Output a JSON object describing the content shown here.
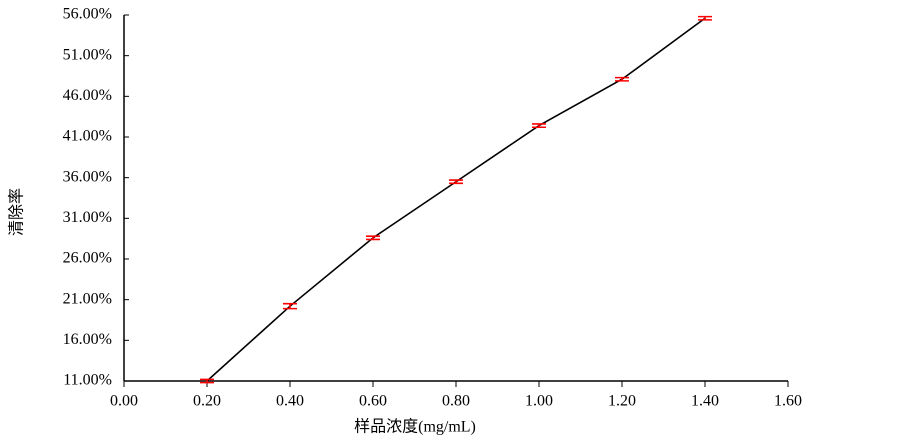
{
  "chart_data": {
    "type": "line",
    "xlabel": "样品浓度(mg/mL)",
    "ylabel": "清除率",
    "x": [
      0.2,
      0.4,
      0.6,
      0.8,
      1.0,
      1.2,
      1.4
    ],
    "series": [
      {
        "color": "#000000",
        "error_color": "#ff0000",
        "values": [
          11.0,
          20.2,
          28.6,
          35.5,
          42.4,
          48.1,
          55.6
        ],
        "errors": [
          0.2,
          0.3,
          0.2,
          0.2,
          0.2,
          0.2,
          0.2
        ]
      }
    ],
    "xlim": [
      0,
      1.6
    ],
    "xticks": [
      {
        "value": 0,
        "label": "0.00"
      },
      {
        "value": 0.2,
        "label": "0.20"
      },
      {
        "value": 0.4,
        "label": "0.40"
      },
      {
        "value": 0.6,
        "label": "0.60"
      },
      {
        "value": 0.8,
        "label": "0.80"
      },
      {
        "value": 1.0,
        "label": "1.00"
      },
      {
        "value": 1.2,
        "label": "1.20"
      },
      {
        "value": 1.4,
        "label": "1.40"
      },
      {
        "value": 1.6,
        "label": "1.60"
      }
    ],
    "ylim": [
      11,
      56
    ],
    "yticks": [
      {
        "value": 11,
        "label": "11.00%"
      },
      {
        "value": 16,
        "label": "16.00%"
      },
      {
        "value": 21,
        "label": "21.00%"
      },
      {
        "value": 26,
        "label": "26.00%"
      },
      {
        "value": 31,
        "label": "31.00%"
      },
      {
        "value": 36,
        "label": "36.00%"
      },
      {
        "value": 41,
        "label": "41.00%"
      },
      {
        "value": 46,
        "label": "46.00%"
      },
      {
        "value": 51,
        "label": "51.00%"
      },
      {
        "value": 56,
        "label": "56.00%"
      }
    ]
  }
}
